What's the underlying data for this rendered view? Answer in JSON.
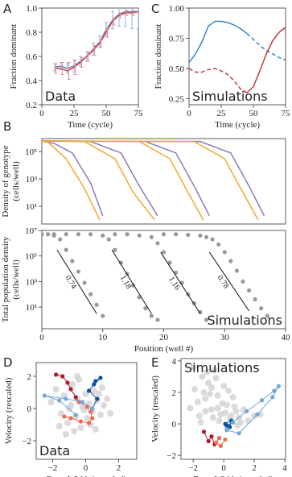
{
  "chart_data": [
    {
      "type": "line",
      "panel_label": "A",
      "annotation": "Data",
      "annotation_corner": "lower left",
      "xlabel": "Time (cycle)",
      "ylabel": "Fraction dominant",
      "xlim": [
        0,
        75
      ],
      "xticks": [
        0,
        25,
        50,
        75
      ],
      "ylim": [
        0.2,
        1
      ],
      "yticks": [
        0.2,
        0.4,
        0.6,
        0.8,
        {
          "value": 1,
          "label": "1.0"
        }
      ],
      "x": [
        10,
        15,
        20,
        25,
        30,
        35,
        40,
        45,
        50,
        55,
        60,
        65,
        70,
        75
      ],
      "series": [
        {
          "color": "#6a78c2",
          "error_color": "#8fb3db",
          "values": [
            0.51,
            0.52,
            0.5,
            0.52,
            0.56,
            0.6,
            0.66,
            0.72,
            0.82,
            0.9,
            0.95,
            0.97,
            0.97,
            0.97
          ],
          "errors": [
            0.03,
            0.03,
            0.04,
            0.05,
            0.04,
            0.04,
            0.05,
            0.05,
            0.06,
            0.07,
            0.1,
            0.12,
            0.14,
            0.14
          ]
        },
        {
          "color": "#d0484f",
          "error_color": "#e08a8a",
          "values": [
            0.5,
            0.5,
            0.48,
            0.51,
            0.55,
            0.6,
            0.65,
            0.71,
            0.8,
            0.89,
            0.94,
            0.96,
            0.96,
            0.97
          ],
          "errors": [
            0.04,
            0.05,
            0.07,
            0.06,
            0.04,
            0.04,
            0.04,
            0.03,
            0.04,
            0.03,
            0.02,
            0.02,
            0.02,
            0.02
          ]
        }
      ]
    },
    {
      "type": "line",
      "panel_label": "C",
      "annotation": "Simulations",
      "annotation_corner": "lower left",
      "xlabel": "Time (cycle)",
      "ylabel": "Fraction dominant",
      "xlim": [
        0,
        75
      ],
      "xticks": [
        0,
        25,
        50,
        75
      ],
      "ylim": [
        0.2,
        1
      ],
      "yticks": [
        {
          "value": 0.25,
          "label": "0.25"
        },
        {
          "value": 0.5,
          "label": "0.50"
        },
        {
          "value": 0.75,
          "label": "0.75"
        },
        {
          "value": 1,
          "label": "1.00"
        }
      ],
      "x": [
        0,
        5,
        10,
        15,
        20,
        25,
        30,
        35,
        40,
        45,
        50,
        55,
        60,
        65,
        70,
        75
      ],
      "series": [
        {
          "color": "#3a85c6",
          "dash": false,
          "values": [
            0.55,
            0.62,
            0.72,
            0.85,
            0.89,
            0.89,
            0.88,
            0.86,
            0.83,
            0.79,
            null,
            null,
            null,
            null,
            null,
            null
          ]
        },
        {
          "color": "#3a85c6",
          "dash": true,
          "values": [
            null,
            null,
            null,
            null,
            null,
            null,
            null,
            null,
            null,
            0.79,
            0.74,
            0.69,
            0.65,
            0.62,
            0.59,
            0.57
          ]
        },
        {
          "color": "#c0393b",
          "dash": true,
          "values": [
            0.5,
            0.47,
            0.47,
            0.49,
            0.5,
            0.48,
            0.45,
            0.4,
            0.33,
            0.3,
            null,
            null,
            null,
            null,
            null,
            null
          ]
        },
        {
          "color": "#c0393b",
          "dash": false,
          "values": [
            null,
            null,
            null,
            null,
            null,
            null,
            null,
            null,
            null,
            0.3,
            0.35,
            0.48,
            0.62,
            0.73,
            0.8,
            0.84
          ]
        }
      ]
    },
    {
      "type": "line",
      "panel_label": "B",
      "log_y": true,
      "ylabel": [
        "Density of genotype",
        "(cells/well)"
      ],
      "xlim": [
        0,
        40
      ],
      "ylim": [
        0.5,
        900000
      ],
      "yticks": [
        {
          "value": 10,
          "label": "10¹"
        },
        {
          "value": 1000,
          "label": "10³"
        },
        {
          "value": 100000,
          "label": "10⁵"
        }
      ],
      "series": [
        {
          "color": "#8a7ab8",
          "x": [
            0,
            2,
            5,
            8,
            10
          ],
          "values": [
            600000,
            400000,
            80000,
            500,
            2
          ]
        },
        {
          "color": "#f0a830",
          "x": [
            0,
            1,
            4,
            7,
            9.5
          ],
          "values": [
            600000,
            500000,
            30000,
            200,
            1
          ]
        },
        {
          "color": "#8a7ab8",
          "x": [
            0,
            8,
            13,
            16,
            19
          ],
          "values": [
            600000,
            550000,
            80000,
            300,
            2
          ]
        },
        {
          "color": "#f0a830",
          "x": [
            0,
            7,
            12,
            15,
            18.5
          ],
          "values": [
            600000,
            550000,
            30000,
            100,
            1
          ]
        },
        {
          "color": "#8a7ab8",
          "x": [
            0,
            17,
            22,
            25,
            27.5
          ],
          "values": [
            600000,
            550000,
            80000,
            300,
            2
          ]
        },
        {
          "color": "#f0a830",
          "x": [
            0,
            16,
            21,
            24,
            26.5
          ],
          "values": [
            600000,
            550000,
            30000,
            100,
            1
          ]
        },
        {
          "color": "#8a7ab8",
          "x": [
            0,
            26,
            31,
            34,
            36.5
          ],
          "values": [
            600000,
            550000,
            80000,
            300,
            2
          ]
        },
        {
          "color": "#f0a830",
          "x": [
            0,
            25,
            30,
            33,
            35.5
          ],
          "values": [
            600000,
            550000,
            30000,
            100,
            1
          ]
        }
      ]
    },
    {
      "type": "scatter",
      "log_y": true,
      "annotation": "Simulations",
      "annotation_corner": "lower right",
      "xlabel": "Position (well #)",
      "ylabel": [
        "Total population density",
        "(cells/well)"
      ],
      "xlim": [
        0,
        40
      ],
      "xticks": [
        0,
        10,
        20,
        30,
        40
      ],
      "ylim": [
        0.2,
        10000000
      ],
      "yticks": [
        {
          "value": 10,
          "label": "10¹"
        },
        {
          "value": 1000,
          "label": "10³"
        },
        {
          "value": 100000,
          "label": "10⁵"
        },
        {
          "value": 10000000,
          "label": "10⁷"
        }
      ],
      "series": [
        {
          "color": "#9a9a9a",
          "markers": true,
          "line": false,
          "x": [
            0,
            1,
            2,
            3,
            4,
            5,
            6,
            7,
            8,
            9,
            10
          ],
          "values": [
            5000000,
            5000000,
            4000000,
            2000000,
            300000,
            40000,
            6000,
            800,
            100,
            15,
            2
          ]
        },
        {
          "color": "#9a9a9a",
          "markers": true,
          "line": false,
          "x": [
            2,
            4,
            6,
            8,
            10,
            11,
            12,
            13,
            14,
            15,
            16,
            17,
            18,
            19
          ],
          "values": [
            5000000,
            5000000,
            5000000,
            5000000,
            4000000,
            2000000,
            300000,
            30000,
            4000,
            500,
            60,
            8,
            2,
            1
          ]
        },
        {
          "color": "#9a9a9a",
          "markers": true,
          "line": false,
          "x": [
            12,
            14,
            16,
            18,
            19,
            20,
            21,
            22,
            23,
            24,
            25,
            26,
            27
          ],
          "values": [
            5000000,
            5000000,
            4000000,
            3000000,
            1000000,
            200000,
            30000,
            5000,
            800,
            100,
            20,
            4,
            1
          ]
        },
        {
          "color": "#9a9a9a",
          "markers": true,
          "line": false,
          "x": [
            20,
            22,
            24,
            26,
            27,
            28,
            29,
            30,
            31,
            32,
            33,
            34,
            35,
            36,
            37
          ],
          "values": [
            5000000,
            5000000,
            4500000,
            4000000,
            3000000,
            2000000,
            800000,
            200000,
            40000,
            7000,
            1000,
            200,
            40,
            8,
            2
          ]
        },
        {
          "color": "#111111",
          "line": true,
          "slope": 0.74,
          "x": [
            2.5,
            9
          ],
          "values": [
            300000,
            3
          ]
        },
        {
          "color": "#111111",
          "line": true,
          "slope": 1.18,
          "x": [
            11.5,
            18
          ],
          "values": [
            300000,
            3
          ]
        },
        {
          "color": "#111111",
          "line": true,
          "slope": 1.16,
          "x": [
            19.5,
            26
          ],
          "values": [
            200000,
            3
          ]
        },
        {
          "color": "#111111",
          "line": true,
          "slope": 0.78,
          "x": [
            27.5,
            34
          ],
          "values": [
            200000,
            5
          ]
        }
      ]
    },
    {
      "type": "scatter",
      "panel_label": "D",
      "annotation": "Data",
      "annotation_corner": "lower left",
      "xlabel": "Front Width (rescaled)",
      "ylabel": "Velocity (rescaled)",
      "xlim": [
        -3,
        3.1
      ],
      "xticks": [
        {
          "value": -2,
          "label": "−2"
        },
        0,
        2
      ],
      "ylim": [
        -3.15,
        2.85
      ],
      "yticks": [
        {
          "value": -2,
          "label": "−2"
        },
        0,
        2
      ],
      "series": [
        {
          "color": "#d3d3d3",
          "markers": true,
          "line": false,
          "size": 4,
          "x": [
            -2.1,
            -1.8,
            -1.5,
            -1.3,
            -1.1,
            -0.9,
            -0.8,
            -0.6,
            -0.5,
            -0.3,
            -0.2,
            0,
            0.1,
            0.2,
            0.4,
            0.5,
            0.7,
            0.9,
            1.1,
            1.3,
            -1.6,
            -1.2,
            -0.7,
            -0.4,
            0.3,
            0.6,
            1.0,
            -1.0,
            -0.1,
            0.8,
            1.5,
            -0.5
          ],
          "values": [
            0.4,
            1.2,
            -0.3,
            0.8,
            -0.9,
            0.2,
            1.5,
            -0.5,
            0.6,
            -1.2,
            0.1,
            0.9,
            -0.6,
            0.3,
            -0.2,
            1.1,
            0.5,
            -0.4,
            0.2,
            0.6,
            -1.1,
            -1.6,
            -1.4,
            1.8,
            -1.0,
            -1.3,
            1.3,
            0.0,
            -0.1,
            0.9,
            -0.3,
            2.0
          ]
        },
        {
          "color": "#b2182b",
          "markers": true,
          "line": true,
          "x": [
            -1.8,
            -1.4,
            -1.1,
            -0.9,
            -0.6,
            -0.4
          ],
          "values": [
            2.1,
            2.0,
            1.6,
            1.2,
            0.7,
            0.4
          ]
        },
        {
          "color": "#f06a50",
          "markers": true,
          "line": true,
          "x": [
            -0.4,
            0.1,
            0.3,
            0.4,
            0.2,
            -0.3,
            -0.9,
            -1.3
          ],
          "values": [
            0.4,
            0.1,
            -0.2,
            -0.6,
            -0.9,
            -0.8,
            -0.6,
            -0.5
          ]
        },
        {
          "color": "#08519c",
          "markers": true,
          "line": true,
          "x": [
            0.6,
            0.9,
            0.5,
            0.2,
            0.7,
            0.4
          ],
          "values": [
            1.7,
            1.9,
            1.5,
            1.1,
            0.6,
            0.0
          ]
        },
        {
          "color": "#6fa8dc",
          "markers": true,
          "line": true,
          "x": [
            0.4,
            -0.2,
            -1.2,
            -2.5,
            -1.6,
            -0.6
          ],
          "values": [
            0.0,
            0.4,
            0.6,
            0.8,
            0.5,
            -0.4
          ]
        }
      ]
    },
    {
      "type": "scatter",
      "panel_label": "E",
      "annotation": "Simulations",
      "annotation_corner": "upper left",
      "xlabel": "Front Width (rescaled)",
      "ylabel": "Velocity (rescaled)",
      "xlim": [
        -2.8,
        4.05
      ],
      "xticks": [
        {
          "value": -2,
          "label": "−2"
        },
        0,
        2,
        4
      ],
      "ylim": [
        -2.25,
        4.15
      ],
      "yticks": [
        {
          "value": -2,
          "label": "−2"
        },
        0,
        2,
        4
      ],
      "series": [
        {
          "color": "#d3d3d3",
          "markers": true,
          "line": false,
          "size": 4,
          "x": [
            -2.2,
            -1.9,
            -1.6,
            -1.4,
            -1.2,
            -1.0,
            -0.8,
            -0.6,
            -0.4,
            -0.2,
            0,
            0.2,
            0.4,
            0.6,
            0.8,
            1.0,
            1.3,
            1.6,
            2.0,
            -1.7,
            -1.3,
            -0.9,
            -0.5,
            -0.1,
            0.3,
            0.7,
            -1.5,
            -1.1,
            -0.7,
            -0.3,
            0.1,
            0.5,
            0.9,
            -2.0,
            -0.8,
            0.2,
            1.1,
            2.4,
            -1.2,
            -0.4
          ],
          "values": [
            1.0,
            2.2,
            0.5,
            3.0,
            1.6,
            2.6,
            0.9,
            3.4,
            1.8,
            0.6,
            2.4,
            1.2,
            0.3,
            1.7,
            0.8,
            0.4,
            0.9,
            0.2,
            0.5,
            1.4,
            2.0,
            1.9,
            2.9,
            1.3,
            2.1,
            1.1,
            0.1,
            3.3,
            0.4,
            0.2,
            0.7,
            0.5,
            -0.1,
            3.6,
            2.3,
            -0.2,
            0.1,
            0.6,
            0.8,
            1.0
          ]
        },
        {
          "color": "#b2182b",
          "markers": true,
          "line": true,
          "x": [
            -1.3,
            -1.0,
            -0.8,
            -0.6,
            -0.3
          ],
          "values": [
            -0.5,
            -1.1,
            -0.8,
            -1.3,
            -0.9
          ]
        },
        {
          "color": "#f06a50",
          "markers": true,
          "line": true,
          "x": [
            -0.3,
            -0.5,
            -0.2,
            0.1
          ],
          "values": [
            -0.9,
            -1.2,
            -1.4,
            -1.0
          ]
        },
        {
          "color": "#08519c",
          "markers": true,
          "line": true,
          "x": [
            0.1,
            0.5,
            0.4,
            0.2,
            0.6
          ],
          "values": [
            0.0,
            0.2,
            -0.2,
            -0.1,
            0.1
          ]
        },
        {
          "color": "#6fa8dc",
          "markers": true,
          "line": true,
          "x": [
            0.6,
            1.5,
            2.5,
            3.3,
            3.6,
            3.2,
            2.2,
            1.0,
            0.2
          ],
          "values": [
            0.1,
            0.8,
            1.5,
            2.1,
            2.4,
            1.7,
            0.6,
            -0.6,
            -0.4
          ]
        }
      ]
    }
  ]
}
